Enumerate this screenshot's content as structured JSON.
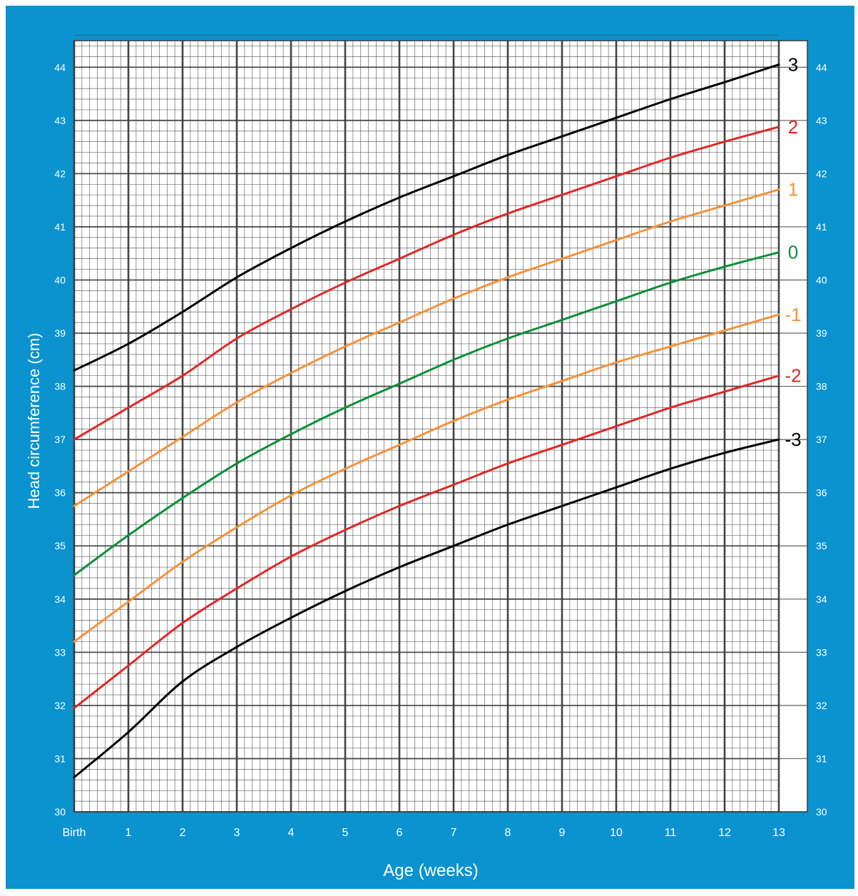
{
  "chart_data": {
    "type": "line",
    "title": "",
    "xlabel": "Age (weeks)",
    "ylabel": "Head circumference (cm)",
    "xlim": [
      0,
      13
    ],
    "ylim": [
      30,
      44.5
    ],
    "x_tick_labels": [
      "Birth",
      "1",
      "2",
      "3",
      "4",
      "5",
      "6",
      "7",
      "8",
      "9",
      "10",
      "11",
      "12",
      "13"
    ],
    "y_tick_labels": [
      "30",
      "31",
      "32",
      "33",
      "34",
      "35",
      "36",
      "37",
      "38",
      "39",
      "40",
      "41",
      "42",
      "43",
      "44"
    ],
    "grid": true,
    "legend": "right-end line labels",
    "x": [
      0,
      1,
      2,
      3,
      4,
      5,
      6,
      7,
      8,
      9,
      10,
      11,
      12,
      13
    ],
    "series": [
      {
        "name": "3",
        "color": "#000000",
        "values": [
          38.3,
          38.8,
          39.4,
          40.05,
          40.6,
          41.1,
          41.55,
          41.95,
          42.35,
          42.7,
          43.05,
          43.4,
          43.72,
          44.05
        ]
      },
      {
        "name": "2",
        "color": "#e02828",
        "values": [
          37.0,
          37.6,
          38.2,
          38.9,
          39.45,
          39.95,
          40.4,
          40.85,
          41.25,
          41.6,
          41.95,
          42.3,
          42.6,
          42.88
        ]
      },
      {
        "name": "1",
        "color": "#f5923a",
        "values": [
          35.75,
          36.4,
          37.05,
          37.7,
          38.25,
          38.75,
          39.2,
          39.65,
          40.05,
          40.4,
          40.75,
          41.1,
          41.4,
          41.7
        ]
      },
      {
        "name": "0",
        "color": "#0c8f3a",
        "values": [
          34.45,
          35.2,
          35.9,
          36.55,
          37.1,
          37.6,
          38.05,
          38.5,
          38.9,
          39.25,
          39.6,
          39.95,
          40.25,
          40.52
        ]
      },
      {
        "name": "-1",
        "color": "#f5923a",
        "values": [
          33.2,
          33.95,
          34.7,
          35.35,
          35.95,
          36.45,
          36.9,
          37.35,
          37.75,
          38.1,
          38.45,
          38.75,
          39.05,
          39.35
        ]
      },
      {
        "name": "-2",
        "color": "#e02828",
        "values": [
          31.95,
          32.75,
          33.55,
          34.2,
          34.8,
          35.3,
          35.75,
          36.15,
          36.55,
          36.9,
          37.25,
          37.6,
          37.9,
          38.2
        ]
      },
      {
        "name": "-3",
        "color": "#000000",
        "values": [
          30.65,
          31.5,
          32.45,
          33.1,
          33.65,
          34.15,
          34.6,
          35.0,
          35.4,
          35.75,
          36.1,
          36.45,
          36.75,
          37.0
        ]
      }
    ],
    "colors": {
      "frame": "#0b93cf",
      "plot_background": "#ffffff",
      "grid": "#3a3a3a",
      "axis_text": "#ffffff"
    }
  }
}
